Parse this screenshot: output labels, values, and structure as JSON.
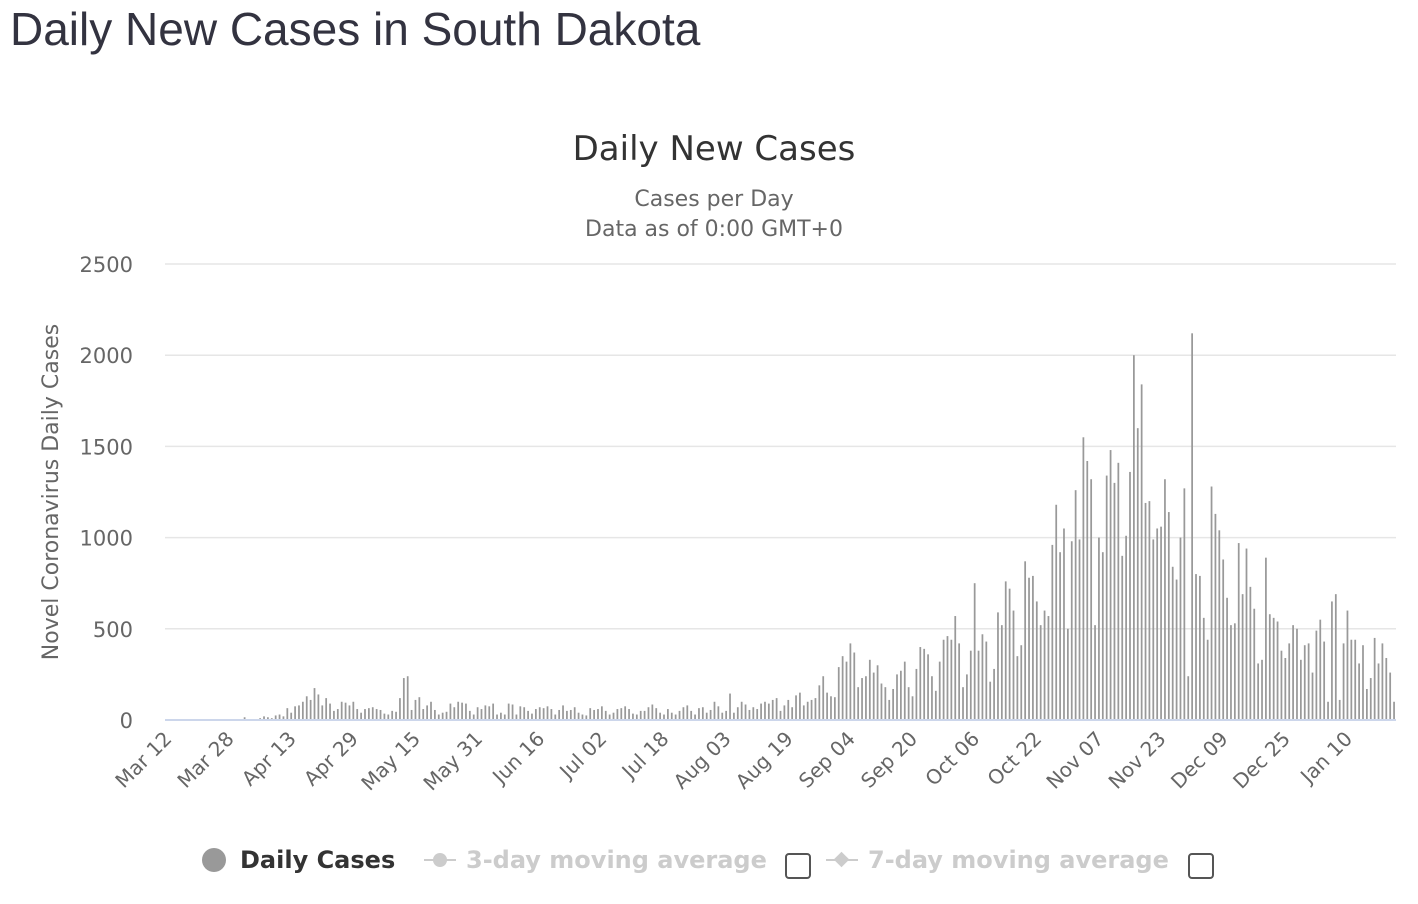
{
  "page": {
    "title": "Daily New Cases in South Dakota"
  },
  "chart_data": {
    "type": "bar",
    "title": "Daily New Cases",
    "subtitle": [
      "Cases per Day",
      "Data as of 0:00 GMT+0"
    ],
    "ylabel": "Novel Coronavirus Daily Cases",
    "xlabel": "",
    "ylim": [
      0,
      2500
    ],
    "yticks": [
      0,
      500,
      1000,
      1500,
      2000,
      2500
    ],
    "grid": true,
    "legend_position": "bottom",
    "start_date": "2020-03-12",
    "xtick_labels": [
      "Mar 12",
      "Mar 28",
      "Apr 13",
      "Apr 29",
      "May 15",
      "May 31",
      "Jun 16",
      "Jul 02",
      "Jul 18",
      "Aug 03",
      "Aug 19",
      "Sep 04",
      "Sep 20",
      "Oct 06",
      "Oct 22",
      "Nov 07",
      "Nov 23",
      "Dec 09",
      "Dec 25",
      "Jan 10"
    ],
    "bar_color": "#999999",
    "series": [
      {
        "name": "Daily Cases",
        "visible": true,
        "values": [
          0,
          0,
          0,
          0,
          0,
          0,
          0,
          0,
          0,
          0,
          0,
          0,
          0,
          0,
          0,
          0,
          0,
          0,
          0,
          0,
          15,
          0,
          0,
          0,
          10,
          20,
          15,
          10,
          25,
          30,
          20,
          65,
          40,
          75,
          80,
          100,
          130,
          110,
          175,
          140,
          80,
          120,
          90,
          50,
          60,
          100,
          95,
          80,
          100,
          60,
          40,
          60,
          65,
          70,
          60,
          55,
          35,
          30,
          50,
          45,
          120,
          230,
          240,
          55,
          110,
          125,
          60,
          80,
          100,
          55,
          30,
          40,
          45,
          90,
          70,
          100,
          95,
          90,
          50,
          30,
          70,
          60,
          80,
          75,
          90,
          30,
          40,
          30,
          90,
          85,
          30,
          75,
          70,
          50,
          35,
          60,
          70,
          65,
          75,
          60,
          30,
          55,
          80,
          50,
          55,
          70,
          40,
          30,
          25,
          65,
          55,
          60,
          75,
          50,
          30,
          40,
          60,
          65,
          75,
          60,
          35,
          30,
          50,
          50,
          70,
          85,
          65,
          40,
          30,
          60,
          40,
          30,
          50,
          70,
          80,
          50,
          30,
          65,
          70,
          40,
          55,
          100,
          75,
          40,
          50,
          145,
          40,
          70,
          100,
          85,
          55,
          70,
          60,
          90,
          100,
          90,
          110,
          120,
          50,
          80,
          110,
          70,
          135,
          150,
          80,
          100,
          110,
          120,
          190,
          240,
          150,
          130,
          125,
          290,
          350,
          320,
          420,
          370,
          180,
          230,
          240,
          330,
          260,
          300,
          200,
          180,
          110,
          170,
          250,
          270,
          320,
          180,
          130,
          280,
          400,
          390,
          360,
          240,
          160,
          320,
          440,
          460,
          440,
          570,
          420,
          180,
          250,
          380,
          750,
          380,
          470,
          430,
          210,
          280,
          590,
          520,
          760,
          720,
          600,
          350,
          410,
          870,
          780,
          790,
          650,
          520,
          600,
          570,
          960,
          1180,
          920,
          1050,
          500,
          980,
          1260,
          990,
          1550,
          1420,
          1320,
          520,
          1000,
          920,
          1340,
          1480,
          1300,
          1410,
          900,
          1010,
          1360,
          2000,
          1600,
          1840,
          1190,
          1200,
          990,
          1050,
          1060,
          1320,
          1140,
          840,
          770,
          1000,
          1270,
          240,
          2120,
          800,
          790,
          560,
          440,
          1280,
          1130,
          1040,
          880,
          670,
          520,
          530,
          970,
          690,
          940,
          730,
          610,
          310,
          330,
          890,
          580,
          560,
          540,
          380,
          340,
          420,
          520,
          500,
          330,
          410,
          420,
          260,
          490,
          550,
          430,
          100,
          650,
          690,
          110,
          420,
          600,
          440,
          440,
          310,
          410,
          170,
          230,
          450,
          310,
          420,
          340,
          260,
          100
        ]
      },
      {
        "name": "3-day moving average",
        "visible": false
      },
      {
        "name": "7-day moving average",
        "visible": false
      }
    ]
  }
}
